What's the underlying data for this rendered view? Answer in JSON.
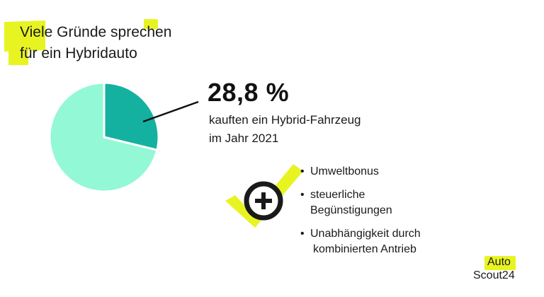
{
  "headline": {
    "line1": "Viele Gründe sprechen",
    "line2": "für ein Hybridauto"
  },
  "chart_data": {
    "type": "pie",
    "title": "",
    "slices": [
      {
        "label": "Hybrid-Fahrzeug",
        "value": 28.8,
        "color": "#15b1a0"
      },
      {
        "label": "",
        "value": 71.2,
        "color": "#93f8d5"
      }
    ]
  },
  "stat": {
    "value": "28,8 %",
    "caption_line1": "kauften ein Hybrid-Fahrzeug",
    "caption_line2": "im Jahr 2021"
  },
  "benefits": {
    "icon": "plus-circle-icon",
    "items": [
      {
        "line1": "Umweltbonus",
        "line2": ""
      },
      {
        "line1": "steuerliche Begünstigungen",
        "line2": ""
      },
      {
        "line1": "Unabhängigkeit durch",
        "line2": "kombinierten Antrieb"
      }
    ]
  },
  "logo": {
    "line1": "Auto",
    "line2": "Scout24"
  },
  "colors": {
    "highlight": "#e8f422",
    "pie_dark": "#15b1a0",
    "pie_light": "#93f8d5",
    "text": "#1a1a1a"
  }
}
